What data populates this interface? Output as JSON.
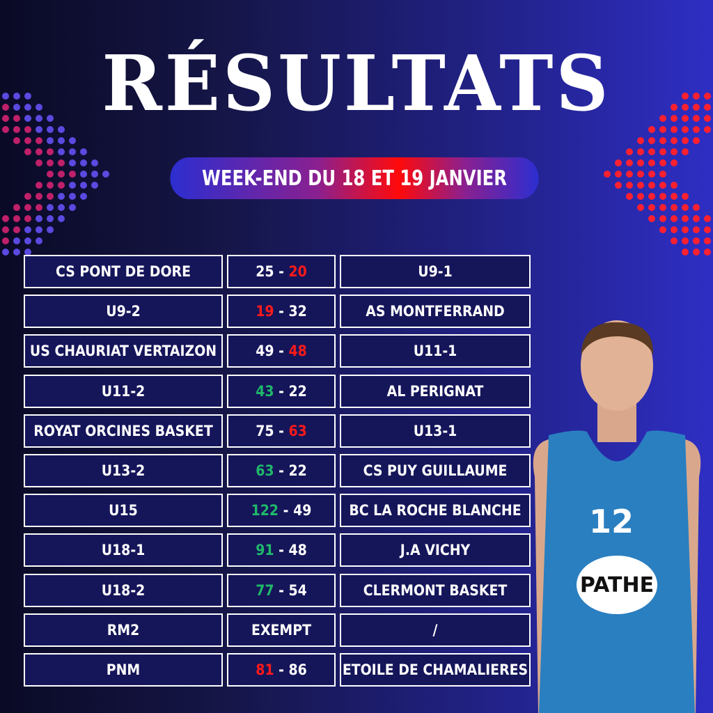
{
  "title": "RÉSULTATS",
  "subtitle": "WEEK-END DU 18 ET 19 JANVIER",
  "colors": {
    "win": "#1fb86a",
    "loss": "#ff1a1a",
    "normal": "#ffffff"
  },
  "results": [
    {
      "home": "CS PONT DE DORE",
      "score_left": "25",
      "score_right": "20",
      "left_color": "#ffffff",
      "right_color": "#ff1a1a",
      "away": "U9-1"
    },
    {
      "home": "U9-2",
      "score_left": "19",
      "score_right": "32",
      "left_color": "#ff1a1a",
      "right_color": "#ffffff",
      "away": "AS MONTFERRAND"
    },
    {
      "home": "US CHAURIAT VERTAIZON",
      "score_left": "49",
      "score_right": "48",
      "left_color": "#ffffff",
      "right_color": "#ff1a1a",
      "away": "U11-1"
    },
    {
      "home": "U11-2",
      "score_left": "43",
      "score_right": "22",
      "left_color": "#1fb86a",
      "right_color": "#ffffff",
      "away": "AL PERIGNAT"
    },
    {
      "home": "ROYAT ORCINES BASKET",
      "score_left": "75",
      "score_right": "63",
      "left_color": "#ffffff",
      "right_color": "#ff1a1a",
      "away": "U13-1"
    },
    {
      "home": "U13-2",
      "score_left": "63",
      "score_right": "22",
      "left_color": "#1fb86a",
      "right_color": "#ffffff",
      "away": "CS PUY GUILLAUME"
    },
    {
      "home": "U15",
      "score_left": "122",
      "score_right": "49",
      "left_color": "#1fb86a",
      "right_color": "#ffffff",
      "away": "BC LA ROCHE BLANCHE"
    },
    {
      "home": "U18-1",
      "score_left": "91",
      "score_right": "48",
      "left_color": "#1fb86a",
      "right_color": "#ffffff",
      "away": "J.A VICHY"
    },
    {
      "home": "U18-2",
      "score_left": "77",
      "score_right": "54",
      "left_color": "#1fb86a",
      "right_color": "#ffffff",
      "away": "CLERMONT BASKET"
    },
    {
      "home": "RM2",
      "score_text": "EXEMPT",
      "away": "/"
    },
    {
      "home": "PNM",
      "score_left": "81",
      "score_right": "86",
      "left_color": "#ff1a1a",
      "right_color": "#ffffff",
      "away": "ETOILE DE CHAMALIERES"
    }
  ],
  "player": {
    "jersey_number": "12",
    "sponsor": "PATHE"
  }
}
